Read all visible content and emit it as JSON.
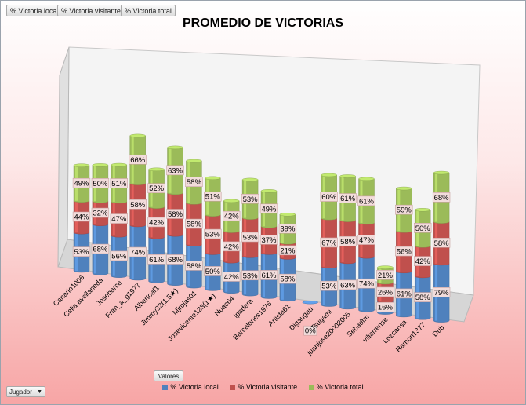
{
  "field_buttons": [
    "% Victoria local",
    "% Victoria visitante",
    "% Victoria total"
  ],
  "values_button": "Valores",
  "filter_button": {
    "label": "Jugador",
    "arrow": "▼"
  },
  "colors": {
    "local": "#4f81bd",
    "visitante": "#c0504d",
    "total": "#9bbb59",
    "label_bg": "#f2dcdb"
  },
  "chart_data": {
    "type": "bar",
    "stacked": true,
    "three_d": true,
    "title": "PROMEDIO DE VICTORIAS",
    "legend_position": "bottom",
    "categories": [
      "Canario1006",
      "Celia.avellaneda",
      "Josebarce",
      "Fran_a_g1977",
      "Albertoaf1",
      "Jimmy32(1,5★)",
      "Mjrojas01",
      "Josevicente123(1★)",
      "Nuac64",
      "Ipadera",
      "Barcelones1976",
      "Artista61",
      "Digaugau",
      "Tsugami",
      "juanjose20002005",
      "Sebadtm",
      "villarrense",
      "Lozcansa",
      "Ramon1377",
      "Dub"
    ],
    "series": [
      {
        "name": "% Victoria local",
        "values": [
          53,
          68,
          56,
          74,
          61,
          68,
          58,
          50,
          42,
          53,
          61,
          58,
          0,
          53,
          63,
          74,
          16,
          61,
          58,
          79
        ]
      },
      {
        "name": "% Victoria visitante",
        "values": [
          44,
          32,
          47,
          58,
          42,
          58,
          58,
          53,
          42,
          53,
          37,
          21,
          null,
          67,
          58,
          47,
          26,
          56,
          42,
          58
        ]
      },
      {
        "name": "% Victoria total",
        "values": [
          49,
          50,
          51,
          66,
          52,
          63,
          58,
          51,
          42,
          53,
          49,
          39,
          null,
          60,
          61,
          61,
          21,
          59,
          50,
          68
        ]
      }
    ]
  }
}
